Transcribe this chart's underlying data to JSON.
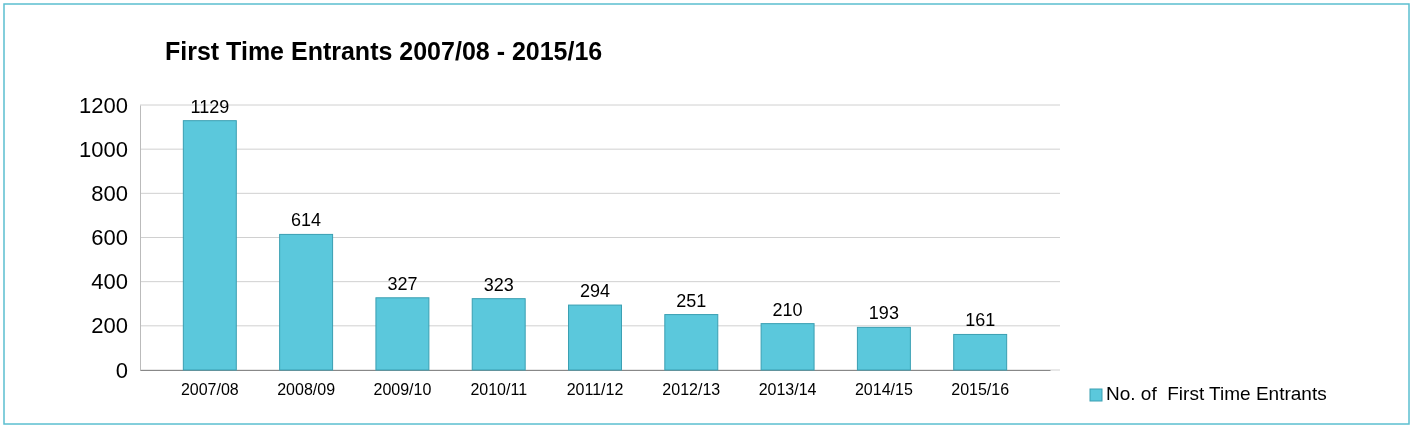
{
  "chart_data": {
    "type": "bar",
    "title": "First Time Entrants 2007/08 - 2015/16",
    "categories": [
      "2007/08",
      "2008/09",
      "2009/10",
      "2010/11",
      "2011/12",
      "2012/13",
      "2013/14",
      "2014/15",
      "2015/16"
    ],
    "series": [
      {
        "name": "No. of  First Time Entrants",
        "color": "#5bc8dc",
        "values": [
          1129,
          614,
          327,
          323,
          294,
          251,
          210,
          193,
          161
        ]
      }
    ],
    "ylim": [
      0,
      1200
    ],
    "yticks": [
      0,
      200,
      400,
      600,
      800,
      1000,
      1200
    ],
    "grid": "y",
    "data_labels": true,
    "legend": "bottom right"
  }
}
